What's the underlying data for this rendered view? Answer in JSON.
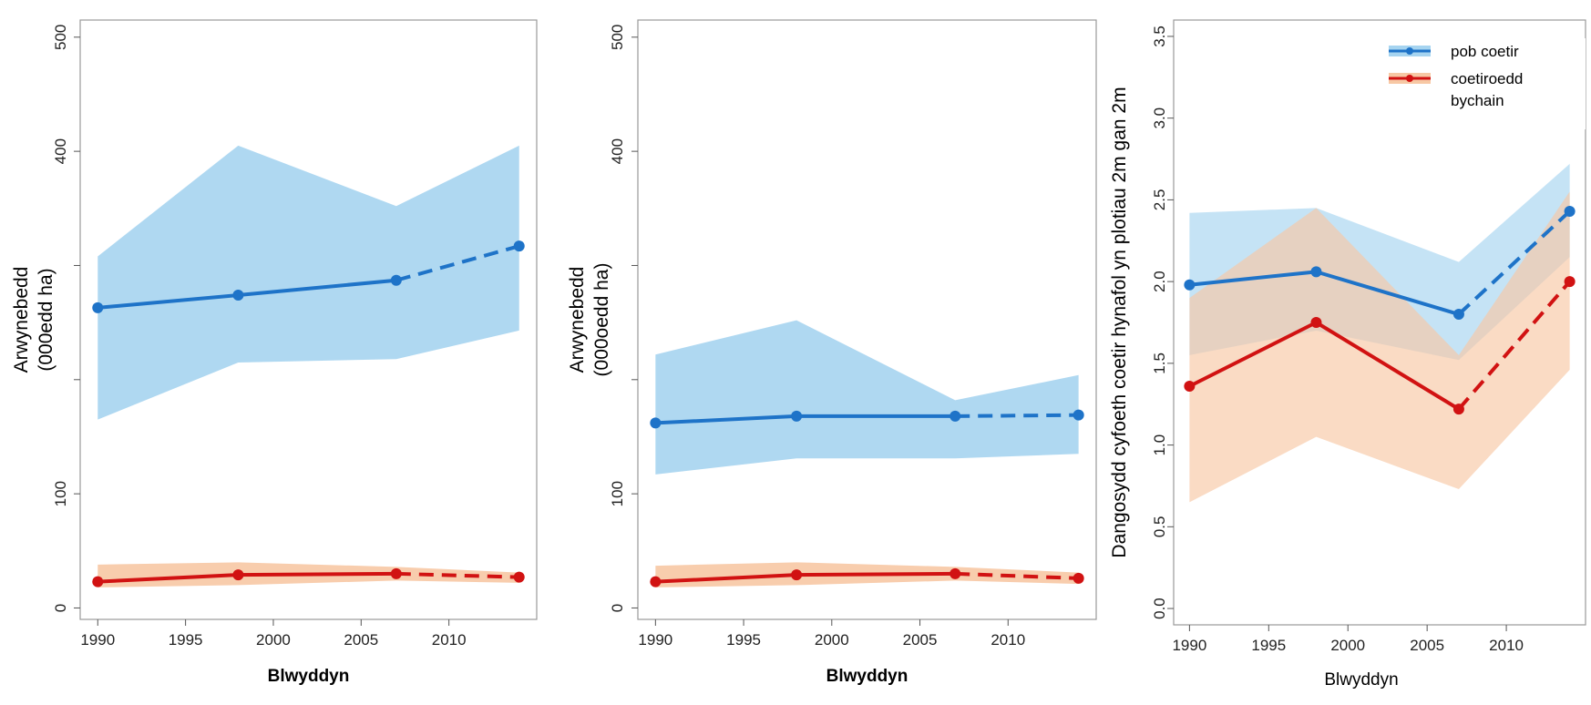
{
  "colors": {
    "blue": "#1e73c8",
    "blue_band": "#a6d4f0",
    "red": "#d11212",
    "red_band": "#f7c8a4",
    "axis": "#999999"
  },
  "chart_data": [
    {
      "type": "line",
      "title": "",
      "xlabel": "Blwyddyn",
      "ylabel_lines": [
        "Arwynebedd",
        "(000edd ha)"
      ],
      "xlim": [
        1989,
        2015
      ],
      "ylim": [
        -10,
        515
      ],
      "x_ticks": [
        1990,
        1995,
        2000,
        2005,
        2010
      ],
      "y_ticks": [
        0,
        100,
        200,
        300,
        400,
        500
      ],
      "y_tick_labels": [
        "0",
        "100",
        "",
        "",
        "400",
        "500"
      ],
      "solid_until": 2007,
      "series": [
        {
          "color_key": "blue",
          "x": [
            1990,
            1998,
            2007,
            2014
          ],
          "values": [
            263,
            274,
            287,
            317
          ],
          "band_upper": [
            308,
            405,
            352,
            405
          ],
          "band_lower": [
            165,
            215,
            218,
            243
          ]
        },
        {
          "color_key": "red",
          "x": [
            1990,
            1998,
            2007,
            2014
          ],
          "values": [
            23,
            29,
            30,
            27
          ],
          "band_upper": [
            38,
            40,
            36,
            31
          ],
          "band_lower": [
            18,
            20,
            24,
            22
          ]
        }
      ]
    },
    {
      "type": "line",
      "title": "",
      "xlabel": "Blwyddyn",
      "ylabel_lines": [
        "Arwynebedd",
        "(000oedd ha)"
      ],
      "xlim": [
        1989,
        2015
      ],
      "ylim": [
        -10,
        515
      ],
      "x_ticks": [
        1990,
        1995,
        2000,
        2005,
        2010
      ],
      "y_ticks": [
        0,
        100,
        200,
        300,
        400,
        500
      ],
      "y_tick_labels": [
        "0",
        "100",
        "",
        "",
        "400",
        "500"
      ],
      "solid_until": 2007,
      "series": [
        {
          "color_key": "blue",
          "x": [
            1990,
            1998,
            2007,
            2014
          ],
          "values": [
            162,
            168,
            168,
            169
          ],
          "band_upper": [
            222,
            252,
            182,
            204
          ],
          "band_lower": [
            117,
            131,
            131,
            135
          ]
        },
        {
          "color_key": "red",
          "x": [
            1990,
            1998,
            2007,
            2014
          ],
          "values": [
            23,
            29,
            30,
            26
          ],
          "band_upper": [
            37,
            40,
            36,
            31
          ],
          "band_lower": [
            18,
            20,
            24,
            21
          ]
        }
      ]
    },
    {
      "type": "line",
      "title": "",
      "xlabel": "Blwyddyn",
      "ylabel_lines": [
        "Dangosydd cyfoeth coetir hynafol yn plotiau 2m gan 2m"
      ],
      "xlim": [
        1989,
        2015
      ],
      "ylim": [
        -0.1,
        3.6
      ],
      "x_ticks": [
        1990,
        1995,
        2000,
        2005,
        2010
      ],
      "y_ticks": [
        0.0,
        0.5,
        1.0,
        1.5,
        2.0,
        2.5,
        3.0,
        3.5
      ],
      "y_tick_labels": [
        "0.0",
        "0.5",
        "1.0",
        "1.5",
        "2.0",
        "2.5",
        "3.0",
        "3.5"
      ],
      "solid_until": 2007,
      "legend": {
        "placement": "top-right",
        "entries": [
          {
            "label_lines": [
              "pob coetir"
            ],
            "color_key": "blue"
          },
          {
            "label_lines": [
              "coetiroedd",
              "bychain"
            ],
            "color_key": "red"
          }
        ]
      },
      "series": [
        {
          "name": "pob coetir",
          "color_key": "blue",
          "x": [
            1990,
            1998,
            2007,
            2014
          ],
          "values": [
            1.98,
            2.06,
            1.8,
            2.43
          ],
          "band_upper": [
            2.42,
            2.45,
            2.12,
            2.72
          ],
          "band_lower": [
            1.55,
            1.7,
            1.52,
            2.15
          ]
        },
        {
          "name": "coetiroedd bychain",
          "color_key": "red",
          "x": [
            1990,
            1998,
            2007,
            2014
          ],
          "values": [
            1.36,
            1.75,
            1.22,
            2.0
          ],
          "band_upper": [
            1.9,
            2.45,
            1.55,
            2.55
          ],
          "band_lower": [
            0.65,
            1.05,
            0.73,
            1.46
          ]
        }
      ]
    }
  ]
}
